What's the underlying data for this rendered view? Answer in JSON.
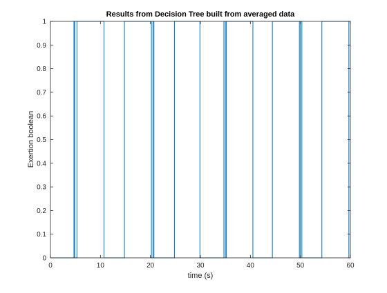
{
  "chart_data": {
    "type": "line",
    "title": "Results from Decision Tree built from averaged data",
    "xlabel": "time (s)",
    "ylabel": "Exertion boolean",
    "xlim": [
      0,
      60
    ],
    "ylim": [
      0,
      1
    ],
    "xticks": [
      0,
      10,
      20,
      30,
      40,
      50,
      60
    ],
    "xtick_labels": [
      "0",
      "10",
      "20",
      "30",
      "40",
      "50",
      "60"
    ],
    "yticks": [
      0,
      0.1,
      0.2,
      0.3,
      0.4,
      0.5,
      0.6,
      0.7,
      0.8,
      0.9,
      1
    ],
    "ytick_labels": [
      "0",
      "0.1",
      "0.2",
      "0.3",
      "0.4",
      "0.5",
      "0.6",
      "0.7",
      "0.8",
      "0.9",
      "1"
    ],
    "grid": false,
    "series": [
      {
        "color": "#0072bd",
        "x": [
          0,
          4.7,
          4.7,
          4.85,
          4.85,
          5.3,
          5.3,
          5.5,
          5.5,
          10.7,
          10.7,
          14.8,
          14.8,
          15.0,
          15.0,
          20.2,
          20.2,
          20.5,
          20.5,
          20.7,
          20.7,
          24.8,
          24.8,
          29.9,
          29.9,
          34.7,
          34.7,
          35.0,
          35.0,
          35.2,
          35.2,
          40.5,
          40.5,
          44.4,
          44.4,
          49.8,
          49.8,
          50.0,
          50.0,
          50.3,
          50.3,
          54.3,
          54.3,
          59.7,
          59.7,
          60
        ],
        "y": [
          0,
          0,
          1,
          1,
          0,
          0,
          1,
          1,
          1,
          1,
          0,
          0,
          1,
          1,
          1,
          1,
          0,
          0,
          1,
          1,
          0,
          0,
          1,
          1,
          0,
          0,
          1,
          1,
          0,
          0,
          1,
          1,
          0,
          0,
          1,
          1,
          0,
          0,
          1,
          1,
          0,
          0,
          1,
          1,
          0,
          0
        ]
      }
    ]
  }
}
